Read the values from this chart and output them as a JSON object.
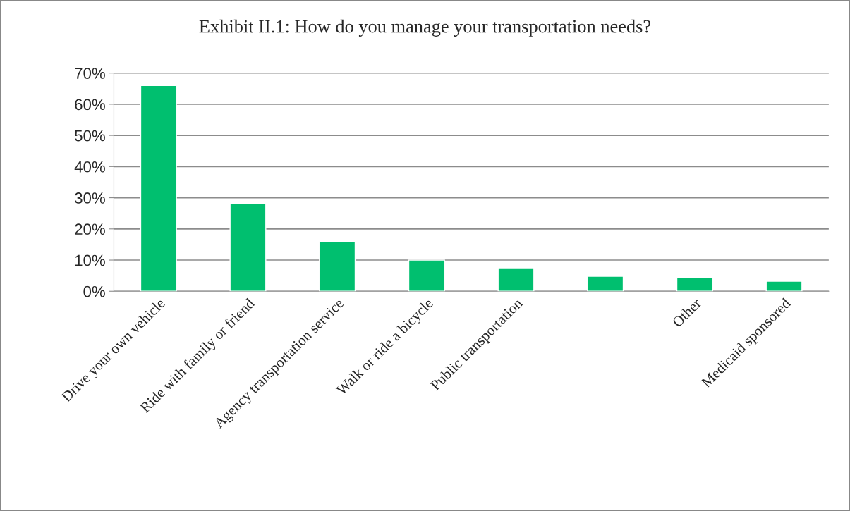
{
  "chart_data": {
    "type": "bar",
    "title": "Exhibit II.1: How do you manage your transportation needs?",
    "categories": [
      "Drive your own vehicle",
      "Ride with family or friend",
      "Agency transportation service",
      "Walk or ride a bicycle",
      "Public transportation",
      null,
      "Other",
      "Medicaid sponsored"
    ],
    "values": [
      66,
      28,
      16,
      10,
      7.5,
      4.8,
      4.3,
      3.2
    ],
    "color": "#00bf6f",
    "ylim": [
      0,
      70
    ],
    "yticks": [
      {
        "value": 0,
        "label": "0%"
      },
      {
        "value": 10,
        "label": "10%"
      },
      {
        "value": 20,
        "label": "20%"
      },
      {
        "value": 30,
        "label": "30%"
      },
      {
        "value": 40,
        "label": "40%"
      },
      {
        "value": 50,
        "label": "50%"
      },
      {
        "value": 60,
        "label": "60%"
      },
      {
        "value": 70,
        "label": "70%"
      }
    ],
    "grid": "y"
  }
}
